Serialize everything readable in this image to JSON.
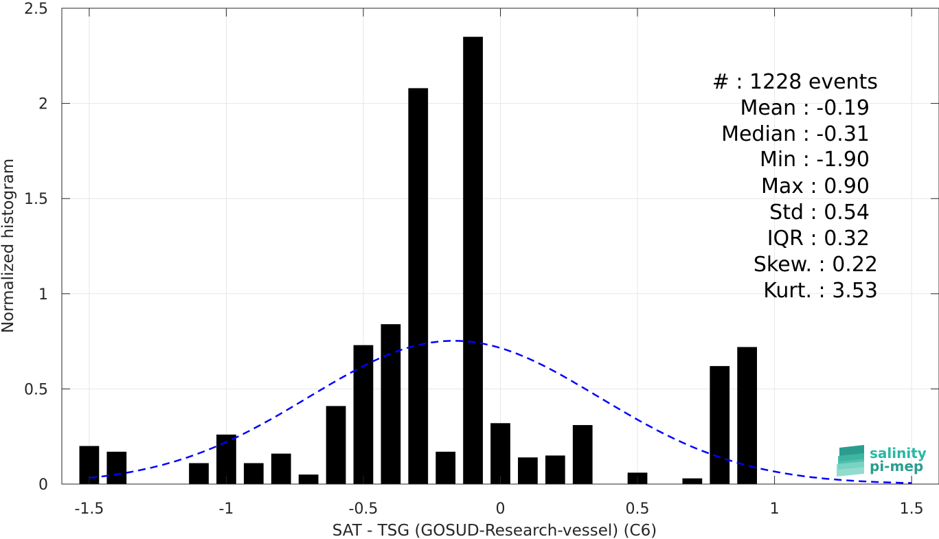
{
  "chart_data": {
    "type": "bar",
    "xlabel": "SAT - TSG (GOSUD-Research-vessel) (C6)",
    "ylabel": "Normalized histogram",
    "xlim": [
      -1.6,
      1.6
    ],
    "ylim": [
      0,
      2.5
    ],
    "grid": true,
    "x_ticks": [
      -1.5,
      -1,
      -0.5,
      0,
      0.5,
      1,
      1.5
    ],
    "x_tick_labels": [
      "-1.5",
      "-1",
      "-0.5",
      "0",
      "0.5",
      "1",
      "1.5"
    ],
    "y_ticks": [
      0,
      0.5,
      1,
      1.5,
      2,
      2.5
    ],
    "y_tick_labels": [
      "0",
      "0.5",
      "1",
      "1.5",
      "2",
      "2.5"
    ],
    "bars": {
      "x": [
        -1.5,
        -1.4,
        -1.1,
        -1.0,
        -0.9,
        -0.8,
        -0.7,
        -0.6,
        -0.5,
        -0.4,
        -0.3,
        -0.2,
        -0.1,
        0.0,
        0.1,
        0.2,
        0.3,
        0.5,
        0.7,
        0.8,
        0.9
      ],
      "values": [
        0.2,
        0.17,
        0.11,
        0.26,
        0.11,
        0.16,
        0.05,
        0.41,
        0.73,
        0.84,
        2.08,
        0.17,
        2.35,
        0.32,
        0.14,
        0.15,
        0.31,
        0.06,
        0.03,
        0.62,
        0.72
      ],
      "color": "#000000"
    },
    "fit_curve": {
      "style": "dashed",
      "color": "#0000ff",
      "mean": -0.17,
      "std": 0.53,
      "x_range": [
        -1.5,
        1.5
      ]
    },
    "stats": [
      "#  : 1228 events",
      "Mean : -0.19",
      "Median : -0.31",
      "Min : -1.90",
      "Max : 0.90",
      "Std : 0.54",
      "IQR : 0.32",
      "Skew. : 0.22",
      "Kurt. : 3.53"
    ]
  },
  "logo": {
    "line1": "salinity",
    "line2": "pi-mep",
    "icon": "wave-layers-icon",
    "color": "#2ab7a3"
  }
}
